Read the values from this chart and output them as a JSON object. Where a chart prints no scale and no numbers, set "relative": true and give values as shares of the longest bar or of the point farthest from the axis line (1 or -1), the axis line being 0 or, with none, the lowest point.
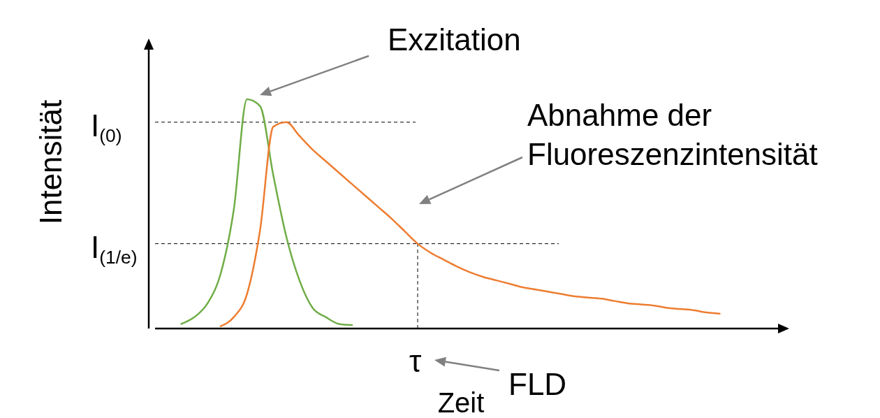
{
  "chart_data": {
    "type": "line",
    "relative": true,
    "xlabel": "Zeit",
    "ylabel": "Intensität",
    "line_style": "solid",
    "categories": [
      null,
      null,
      null,
      null,
      null,
      null,
      null,
      null,
      null,
      null,
      null,
      null,
      null,
      null,
      null,
      null,
      null,
      null,
      null,
      null,
      null,
      null,
      null,
      null,
      null,
      null,
      null,
      null,
      null,
      null,
      null,
      null,
      null,
      null,
      null,
      null,
      null,
      null,
      null,
      null,
      null,
      null,
      null,
      null,
      null,
      null,
      null,
      null
    ],
    "series": [
      {
        "color": "#70ad47",
        "values": [
          null,
          null,
          0.02,
          0.05,
          0.11,
          0.24,
          0.52,
          1.0,
          0.97,
          0.67,
          0.4,
          0.21,
          0.09,
          0.05,
          0.02,
          0.015,
          null,
          null,
          null,
          null,
          null,
          null,
          null,
          null,
          null,
          null,
          null,
          null,
          null,
          null,
          null,
          null,
          null,
          null,
          null,
          null,
          null,
          null,
          null,
          null,
          null,
          null,
          null,
          null,
          null,
          null,
          null,
          null
        ]
      },
      {
        "color": "#ed7d31",
        "values": [
          null,
          null,
          null,
          null,
          null,
          0.01,
          0.05,
          0.15,
          0.43,
          0.88,
          0.9,
          0.84,
          0.78,
          0.73,
          0.68,
          0.63,
          0.58,
          0.53,
          0.48,
          0.425,
          0.37,
          0.33,
          0.3,
          0.27,
          0.245,
          0.225,
          0.21,
          0.195,
          0.18,
          0.17,
          0.16,
          0.15,
          0.14,
          0.135,
          0.13,
          0.12,
          0.11,
          0.105,
          0.1,
          0.09,
          0.085,
          0.08,
          0.07,
          0.065,
          null,
          null,
          null,
          null
        ]
      }
    ],
    "ref_lines": [
      {
        "axis": "y",
        "value": 0.9,
        "label": "I$_{(0)}$",
        "line_style": "dashed",
        "color": "#000000"
      },
      {
        "axis": "y",
        "value": 0.37,
        "label": "I$_{(1/e)}$",
        "line_style": "dashed",
        "color": "#000000"
      }
    ],
    "annotations": [
      "Exzitation",
      "Abnahme der Fluoreszenzintensität",
      "FLD",
      "τ"
    ]
  }
}
